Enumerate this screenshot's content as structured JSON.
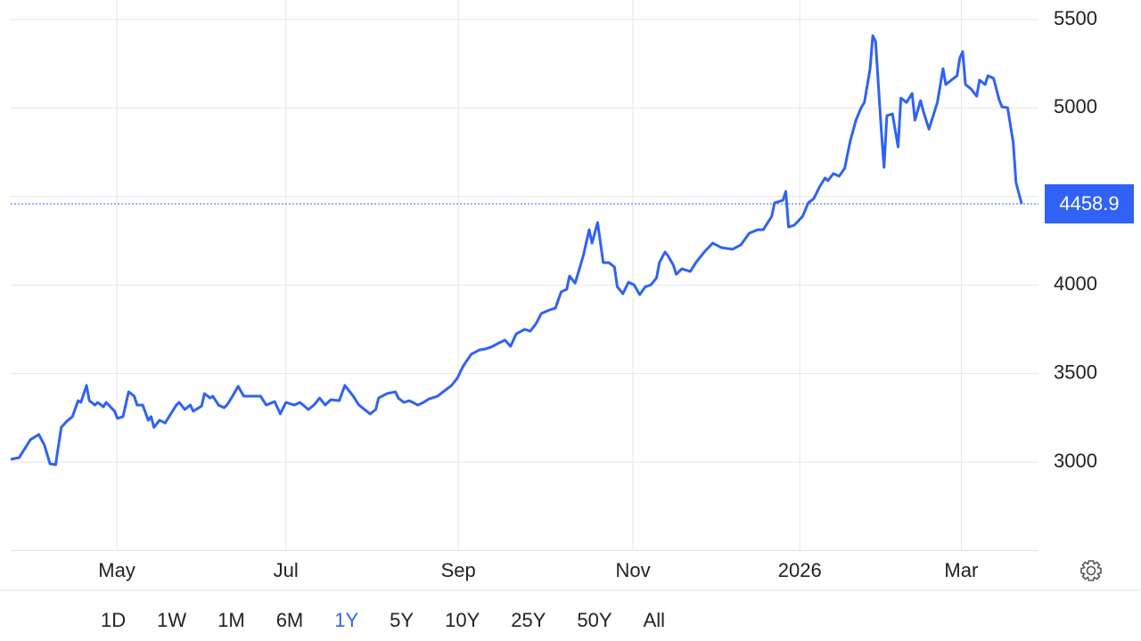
{
  "chart_data": {
    "type": "line",
    "x": [
      0,
      3,
      7,
      10,
      12,
      14,
      16,
      18,
      20,
      22,
      24,
      25,
      27,
      28,
      30,
      31,
      33,
      34,
      37,
      38,
      40,
      42,
      44,
      45,
      47,
      49,
      50,
      51,
      53,
      55,
      57,
      59,
      60,
      62,
      64,
      65,
      68,
      69,
      71,
      72,
      74,
      76,
      77,
      79,
      81,
      83,
      87,
      89,
      91,
      94,
      96,
      98,
      101,
      103,
      106,
      108,
      110,
      112,
      114,
      117,
      119,
      122,
      124,
      126,
      128,
      130,
      131,
      134,
      137,
      138,
      140,
      142,
      145,
      147,
      149,
      152,
      154,
      157,
      159,
      161,
      162,
      164,
      167,
      169,
      171,
      174,
      176,
      178,
      180,
      183,
      185,
      187,
      189,
      192,
      194,
      196,
      198,
      199,
      201,
      203,
      204,
      206,
      207,
      209,
      211,
      213,
      215,
      216,
      218,
      220,
      222,
      224,
      226,
      228,
      230,
      231,
      233,
      234,
      236,
      237,
      239,
      242,
      244,
      247,
      250,
      253,
      257,
      260,
      263,
      266,
      268,
      271,
      272,
      275,
      276,
      277,
      279,
      282,
      284,
      286,
      288,
      290,
      291,
      293,
      295,
      297,
      298,
      299,
      301,
      303,
      304,
      306,
      307,
      308,
      310,
      311,
      312,
      314,
      316,
      317,
      319,
      321,
      322,
      324,
      325,
      327,
      329,
      330,
      332,
      333,
      335,
      337,
      338,
      339,
      340,
      342,
      344,
      345,
      347,
      348,
      350,
      352,
      353,
      355,
      357,
      358,
      360
    ],
    "values": [
      3015,
      3025,
      3126,
      3156,
      3096,
      2990,
      2985,
      3196,
      3231,
      3257,
      3347,
      3337,
      3433,
      3347,
      3322,
      3337,
      3312,
      3337,
      3287,
      3247,
      3257,
      3397,
      3372,
      3322,
      3322,
      3236,
      3257,
      3196,
      3236,
      3221,
      3272,
      3322,
      3337,
      3297,
      3322,
      3287,
      3317,
      3387,
      3362,
      3372,
      3322,
      3307,
      3322,
      3372,
      3428,
      3372,
      3372,
      3372,
      3322,
      3342,
      3272,
      3337,
      3322,
      3337,
      3297,
      3322,
      3362,
      3322,
      3352,
      3347,
      3433,
      3372,
      3322,
      3297,
      3272,
      3297,
      3362,
      3387,
      3397,
      3362,
      3337,
      3347,
      3322,
      3337,
      3357,
      3372,
      3397,
      3433,
      3473,
      3538,
      3563,
      3609,
      3634,
      3639,
      3649,
      3674,
      3689,
      3654,
      3724,
      3750,
      3740,
      3780,
      3840,
      3860,
      3870,
      3961,
      3976,
      4051,
      4011,
      4117,
      4172,
      4313,
      4237,
      4353,
      4127,
      4127,
      4102,
      3991,
      3951,
      4016,
      4001,
      3946,
      3991,
      4001,
      4041,
      4127,
      4187,
      4167,
      4112,
      4061,
      4092,
      4077,
      4127,
      4187,
      4237,
      4212,
      4202,
      4227,
      4293,
      4313,
      4313,
      4388,
      4464,
      4479,
      4529,
      4328,
      4338,
      4388,
      4464,
      4489,
      4554,
      4605,
      4590,
      4630,
      4615,
      4660,
      4740,
      4816,
      4932,
      5007,
      5032,
      5218,
      5409,
      5374,
      4881,
      4665,
      4957,
      4967,
      4781,
      5057,
      5032,
      5083,
      4932,
      5042,
      4982,
      4881,
      4982,
      5032,
      5223,
      5133,
      5158,
      5183,
      5284,
      5319,
      5133,
      5108,
      5067,
      5158,
      5133,
      5183,
      5168,
      5047,
      5007,
      5002,
      4806,
      4579,
      4458.9
    ],
    "color": "#2f62f5",
    "xlim": [
      0,
      366
    ],
    "xticks": [
      {
        "value": 37.8,
        "label": "May"
      },
      {
        "value": 98,
        "label": "Jul"
      },
      {
        "value": 159.4,
        "label": "Sep"
      },
      {
        "value": 221.6,
        "label": "Nov"
      },
      {
        "value": 281,
        "label": "2026"
      },
      {
        "value": 338.5,
        "label": "Mar"
      }
    ],
    "ylim": [
      2500,
      5600
    ],
    "yticks": [
      3000,
      3500,
      4000,
      4500,
      5000,
      5500
    ],
    "grid": true,
    "range_buttons": [
      "1D",
      "1W",
      "1M",
      "6M",
      "1Y",
      "5Y",
      "10Y",
      "25Y",
      "50Y",
      "All"
    ],
    "selected_range": "1Y"
  }
}
